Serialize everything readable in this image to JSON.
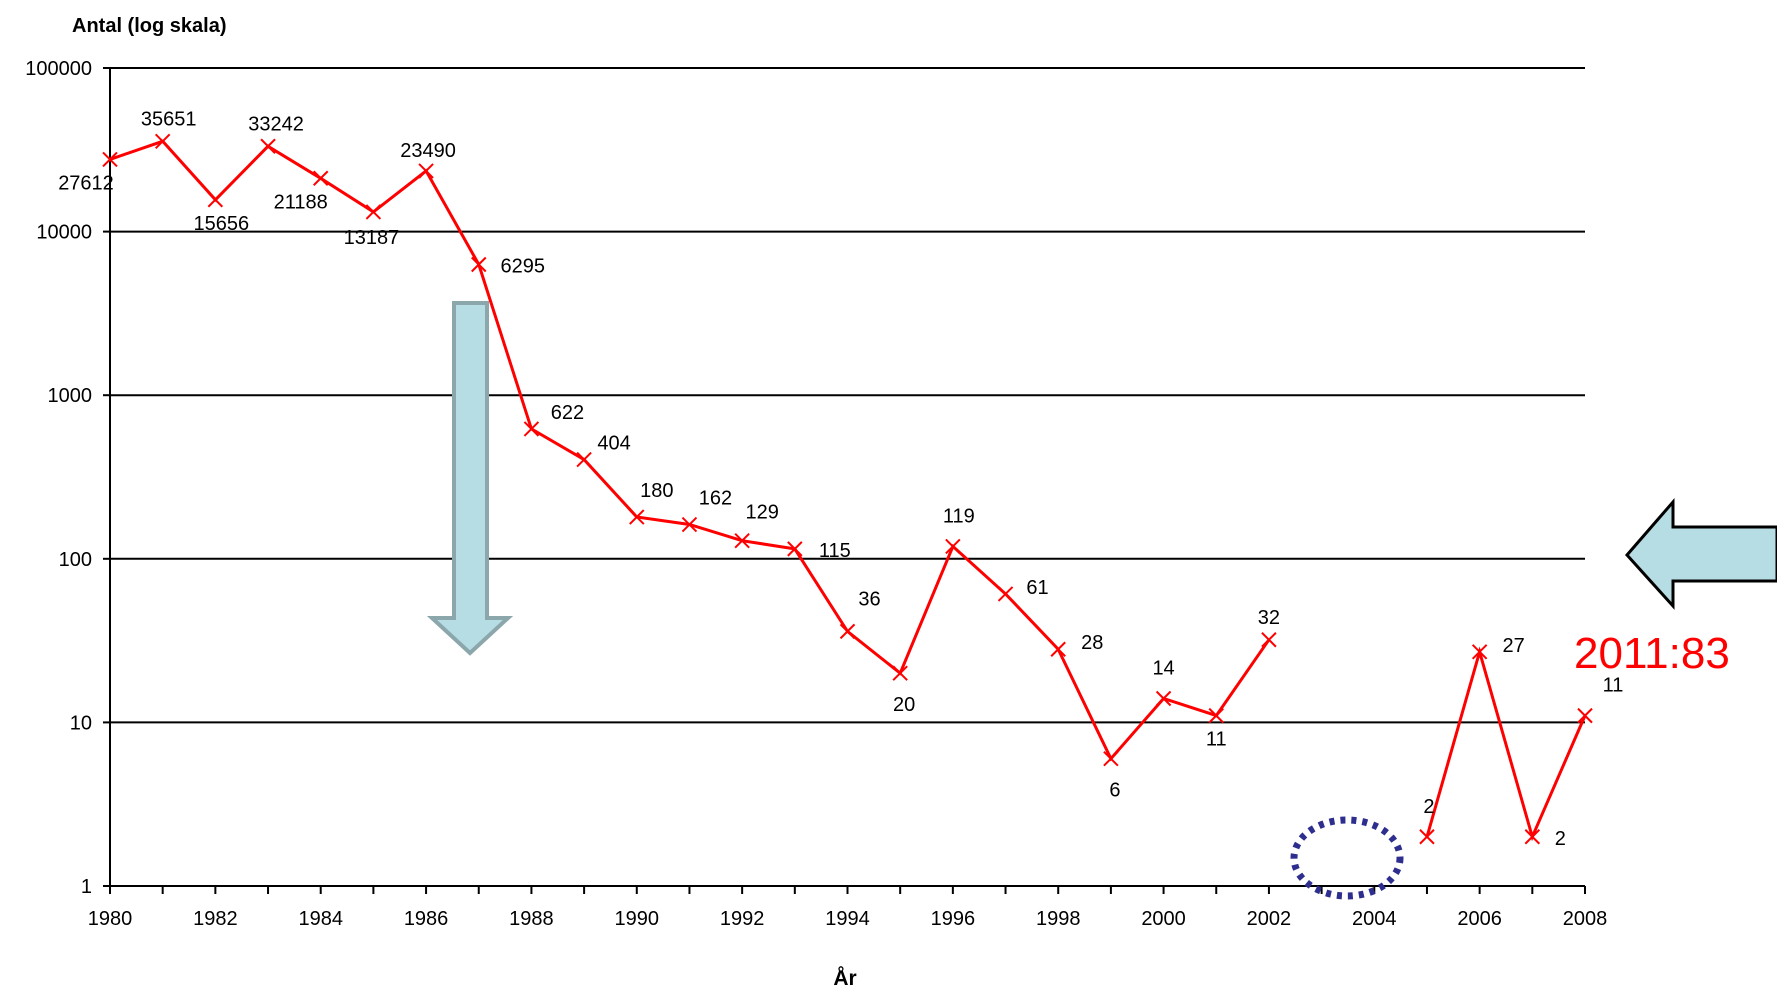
{
  "chart_data": {
    "type": "line",
    "title": "",
    "ylabel": "Antal (log skala)",
    "xlabel": "År",
    "y_scale": "log",
    "ylim": [
      1,
      100000
    ],
    "y_ticks": [
      "1",
      "10",
      "100",
      "1000",
      "10000",
      "100000"
    ],
    "x_ticks": [
      "1980",
      "1982",
      "1984",
      "1986",
      "1988",
      "1990",
      "1992",
      "1994",
      "1996",
      "1998",
      "2000",
      "2002",
      "2004",
      "2006",
      "2008"
    ],
    "xlim": [
      1980,
      2008
    ],
    "grid": "horizontal major gridlines",
    "series_color": "#ff0000",
    "segments": [
      {
        "x": [
          1980,
          1981,
          1982,
          1983,
          1984,
          1985,
          1986,
          1987,
          1988,
          1989,
          1990,
          1991,
          1992,
          1993,
          1994,
          1995,
          1996,
          1997,
          1998,
          1999,
          2000,
          2001,
          2002
        ],
        "y": [
          27612,
          35651,
          15656,
          33242,
          21188,
          13187,
          23490,
          6295,
          622,
          404,
          180,
          162,
          129,
          115,
          36,
          20,
          119,
          61,
          28,
          6,
          14,
          11,
          32
        ],
        "labels": [
          "27612",
          "35651",
          "15656",
          "33242",
          "21188",
          "13187",
          "23490",
          "6295",
          "622",
          "404",
          "180",
          "162",
          "129",
          "115",
          "36",
          "20",
          "119",
          "61",
          "28",
          "6",
          "14",
          "11",
          "32"
        ]
      },
      {
        "x": [
          2005,
          2006,
          2007,
          2008
        ],
        "y": [
          2,
          27,
          2,
          11
        ],
        "labels": [
          "2",
          "27",
          "2",
          "11"
        ]
      }
    ],
    "annotations": {
      "note_text": "2011:83",
      "note_color": "#ff0000",
      "arrow_fill": "#b7dde4",
      "arrow_stroke": "#8ba7ac",
      "ellipse_color": "#2e2e8f"
    }
  }
}
